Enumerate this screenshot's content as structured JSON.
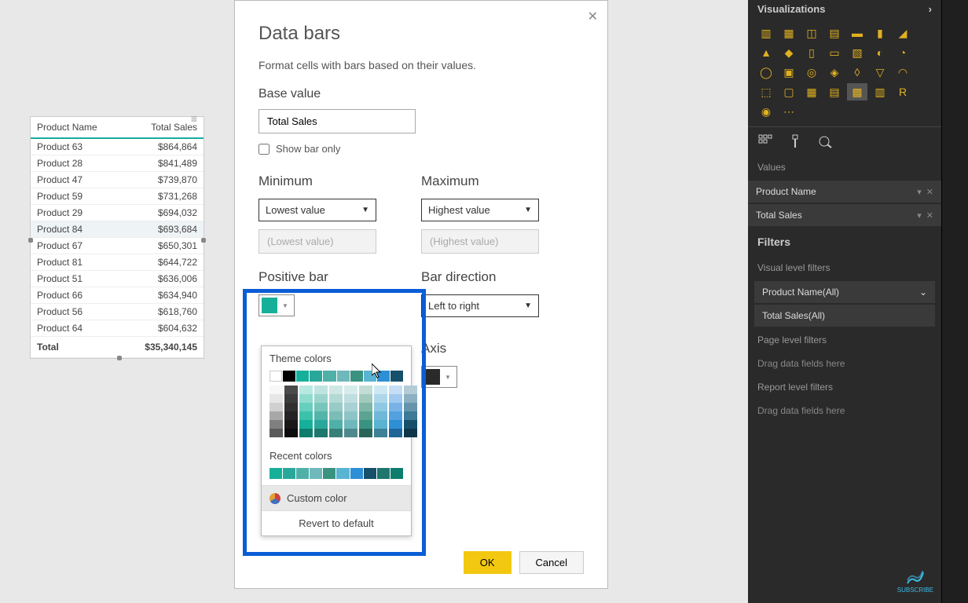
{
  "table": {
    "col1": "Product Name",
    "col2": "Total Sales",
    "rows": [
      {
        "name": "Product 63",
        "val": "$864,864"
      },
      {
        "name": "Product 28",
        "val": "$841,489"
      },
      {
        "name": "Product 47",
        "val": "$739,870"
      },
      {
        "name": "Product 59",
        "val": "$731,268"
      },
      {
        "name": "Product 29",
        "val": "$694,032"
      },
      {
        "name": "Product 84",
        "val": "$693,684"
      },
      {
        "name": "Product 67",
        "val": "$650,301"
      },
      {
        "name": "Product 81",
        "val": "$644,722"
      },
      {
        "name": "Product 51",
        "val": "$636,006"
      },
      {
        "name": "Product 66",
        "val": "$634,940"
      },
      {
        "name": "Product 56",
        "val": "$618,760"
      },
      {
        "name": "Product 64",
        "val": "$604,632"
      }
    ],
    "total_label": "Total",
    "total_val": "$35,340,145"
  },
  "dialog": {
    "title": "Data bars",
    "desc": "Format cells with bars based on their values.",
    "base_label": "Base value",
    "base_value": "Total Sales",
    "show_bar_only": "Show bar only",
    "min_label": "Minimum",
    "max_label": "Maximum",
    "min_select": "Lowest value",
    "max_select": "Highest value",
    "min_placeholder": "(Lowest value)",
    "max_placeholder": "(Highest value)",
    "positive_label": "Positive bar",
    "bar_dir_label": "Bar direction",
    "bar_dir_value": "Left to right",
    "axis_label": "Axis",
    "positive_color": "#16b09a",
    "axis_color": "#2a2a2a",
    "ok": "OK",
    "cancel": "Cancel"
  },
  "picker": {
    "theme_label": "Theme colors",
    "recent_label": "Recent colors",
    "custom_label": "Custom color",
    "revert_label": "Revert to default",
    "theme_row": [
      "#ffffff",
      "#000000",
      "#16b09a",
      "#2aa79b",
      "#4fb0a8",
      "#6fb8bc",
      "#3a9280",
      "#58b4d0",
      "#2d8fd6",
      "#17506b"
    ],
    "shades": [
      [
        "#f7f7f7",
        "#e6e6e6",
        "#d0d0d0",
        "#a8a8a8",
        "#808080",
        "#5a5a5a"
      ],
      [
        "#4a4a4a",
        "#3c3c3c",
        "#303030",
        "#242424",
        "#181818",
        "#0c0c0c"
      ],
      [
        "#b7e8e1",
        "#8fdccf",
        "#66cfbd",
        "#3cc2ab",
        "#16b09a",
        "#0e7d6d"
      ],
      [
        "#bfe4df",
        "#9bd4cd",
        "#77c5bb",
        "#53b5a9",
        "#2aa79b",
        "#1e766d"
      ],
      [
        "#cfe7e4",
        "#b3d9d5",
        "#97cbc6",
        "#7abdb7",
        "#4fb0a8",
        "#37807a"
      ],
      [
        "#d8ebec",
        "#c0dee0",
        "#a7d1d4",
        "#8ec4c8",
        "#6fb8bc",
        "#4f888c"
      ],
      [
        "#c2ddd5",
        "#a0cabe",
        "#7eb7a8",
        "#5ca491",
        "#3a9280",
        "#28665a"
      ],
      [
        "#cde8f2",
        "#aed8ea",
        "#8ec8e1",
        "#6fb8d8",
        "#58b4d0",
        "#3e8096"
      ],
      [
        "#c5def5",
        "#9fc9ee",
        "#79b3e6",
        "#52a0de",
        "#2d8fd6",
        "#1f6598"
      ],
      [
        "#b3cbd7",
        "#8bb0c2",
        "#6495ac",
        "#3c7a96",
        "#17506b",
        "#0f3648"
      ]
    ],
    "recent": [
      "#16b09a",
      "#2aa79b",
      "#4fb0a8",
      "#6fb8bc",
      "#3a9280",
      "#58b4d0",
      "#2d8fd6",
      "#17506b",
      "#1e766d",
      "#0e7d6d"
    ]
  },
  "panel": {
    "viz_title": "Visualizations",
    "values_label": "Values",
    "field1": "Product Name",
    "field2": "Total Sales",
    "filters_label": "Filters",
    "visual_filters": "Visual level filters",
    "vf1": "Product Name(All)",
    "vf2": "Total Sales(All)",
    "page_filters": "Page level filters",
    "report_filters": "Report level filters",
    "drag_hint": "Drag data fields here",
    "subscribe": "SUBSCRIBE"
  }
}
